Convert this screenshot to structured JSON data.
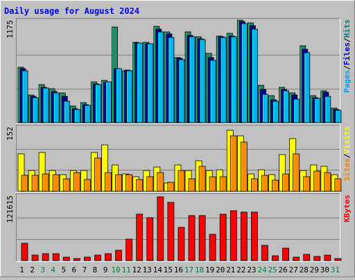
{
  "chart_data": [
    {
      "type": "bar",
      "title": "Daily usage for August 2024",
      "panel": "pages-files-hits",
      "ylabel_max": "1175",
      "ymax": 1175,
      "ylabel_parts": [
        {
          "text": "Pages",
          "color": "#00a0ff"
        },
        {
          "text": "/",
          "color": "#000000"
        },
        {
          "text": "Files",
          "color": "#0000c0"
        },
        {
          "text": "/",
          "color": "#000000"
        },
        {
          "text": "Hits",
          "color": "#008080"
        }
      ],
      "categories": [
        "1",
        "2",
        "3",
        "4",
        "5",
        "6",
        "7",
        "8",
        "9",
        "10",
        "11",
        "12",
        "13",
        "14",
        "15",
        "16",
        "17",
        "18",
        "19",
        "20",
        "21",
        "22",
        "23",
        "24",
        "25",
        "26",
        "27",
        "28",
        "29",
        "30",
        "31"
      ],
      "series": [
        {
          "name": "Hits",
          "color": "#1e8c64",
          "values": [
            640,
            320,
            440,
            390,
            340,
            190,
            230,
            470,
            490,
            1100,
            600,
            930,
            930,
            1110,
            1050,
            750,
            1050,
            990,
            800,
            1000,
            1030,
            1180,
            1150,
            430,
            310,
            410,
            340,
            890,
            310,
            370,
            170
          ]
        },
        {
          "name": "Files",
          "color": "#00008b",
          "values": [
            620,
            300,
            410,
            360,
            300,
            160,
            210,
            450,
            460,
            620,
            610,
            920,
            910,
            1080,
            1020,
            740,
            1010,
            970,
            750,
            990,
            1000,
            1170,
            1120,
            380,
            260,
            380,
            320,
            850,
            290,
            350,
            150
          ]
        },
        {
          "name": "Pages",
          "color": "#00b4f0",
          "values": [
            600,
            290,
            400,
            340,
            250,
            150,
            200,
            440,
            470,
            620,
            600,
            920,
            910,
            1050,
            980,
            730,
            990,
            960,
            720,
            980,
            990,
            1140,
            1080,
            330,
            250,
            370,
            270,
            810,
            280,
            300,
            140
          ]
        }
      ]
    },
    {
      "type": "bar",
      "panel": "sites-visits",
      "ylabel_max": "152",
      "ymax": 152,
      "ylabel_parts": [
        {
          "text": "Sites",
          "color": "#ff8000"
        },
        {
          "text": "/",
          "color": "#000000"
        },
        {
          "text": "Visits",
          "color": "#ffff00"
        }
      ],
      "series": [
        {
          "name": "Visits",
          "color": "#ffff00",
          "values": [
            90,
            50,
            92,
            50,
            40,
            50,
            50,
            92,
            110,
            63,
            42,
            35,
            50,
            58,
            20,
            63,
            50,
            73,
            50,
            52,
            145,
            132,
            42,
            52,
            40,
            87,
            125,
            50,
            62,
            60,
            40
          ]
        },
        {
          "name": "Sites",
          "color": "#ff8c00",
          "values": [
            38,
            38,
            42,
            40,
            30,
            45,
            28,
            80,
            45,
            40,
            40,
            28,
            34,
            45,
            22,
            50,
            30,
            60,
            35,
            35,
            132,
            117,
            30,
            38,
            27,
            42,
            90,
            35,
            48,
            45,
            30
          ]
        }
      ]
    },
    {
      "type": "bar",
      "panel": "kbytes",
      "ylabel_max": "121615",
      "ymax": 121615,
      "ylabel_parts": [
        {
          "text": "KBytes",
          "color": "#ff0000"
        }
      ],
      "series": [
        {
          "name": "KBytes",
          "color": "#ff0000",
          "values": [
            33000,
            10000,
            13000,
            13000,
            6000,
            4000,
            7000,
            10000,
            13000,
            20000,
            41000,
            87000,
            81000,
            120000,
            110000,
            63000,
            85000,
            85000,
            50000,
            87000,
            94000,
            92000,
            92000,
            29000,
            9000,
            23000,
            6000,
            12000,
            8000,
            11000,
            4000
          ]
        }
      ]
    }
  ],
  "x_labels": [
    {
      "text": "1",
      "color": "#000000"
    },
    {
      "text": "2",
      "color": "#000000"
    },
    {
      "text": "3",
      "color": "#008040"
    },
    {
      "text": "4",
      "color": "#008040"
    },
    {
      "text": "5",
      "color": "#000000"
    },
    {
      "text": "6",
      "color": "#000000"
    },
    {
      "text": "7",
      "color": "#000000"
    },
    {
      "text": "8",
      "color": "#000000"
    },
    {
      "text": "9",
      "color": "#000000"
    },
    {
      "text": "10",
      "color": "#008040"
    },
    {
      "text": "11",
      "color": "#008040"
    },
    {
      "text": "12",
      "color": "#000000"
    },
    {
      "text": "13",
      "color": "#000000"
    },
    {
      "text": "14",
      "color": "#000000"
    },
    {
      "text": "15",
      "color": "#000000"
    },
    {
      "text": "16",
      "color": "#000000"
    },
    {
      "text": "17",
      "color": "#008040"
    },
    {
      "text": "18",
      "color": "#008040"
    },
    {
      "text": "19",
      "color": "#000000"
    },
    {
      "text": "20",
      "color": "#000000"
    },
    {
      "text": "21",
      "color": "#000000"
    },
    {
      "text": "22",
      "color": "#000000"
    },
    {
      "text": "23",
      "color": "#000000"
    },
    {
      "text": "24",
      "color": "#008040"
    },
    {
      "text": "25",
      "color": "#008040"
    },
    {
      "text": "26",
      "color": "#000000"
    },
    {
      "text": "27",
      "color": "#000000"
    },
    {
      "text": "28",
      "color": "#000000"
    },
    {
      "text": "29",
      "color": "#000000"
    },
    {
      "text": "30",
      "color": "#000000"
    },
    {
      "text": "31",
      "color": "#008040"
    }
  ],
  "colors": {
    "background": "#c0c0c0",
    "plot_background": "#c0c0c0",
    "grid": "#808080",
    "title": "#0000ff"
  }
}
